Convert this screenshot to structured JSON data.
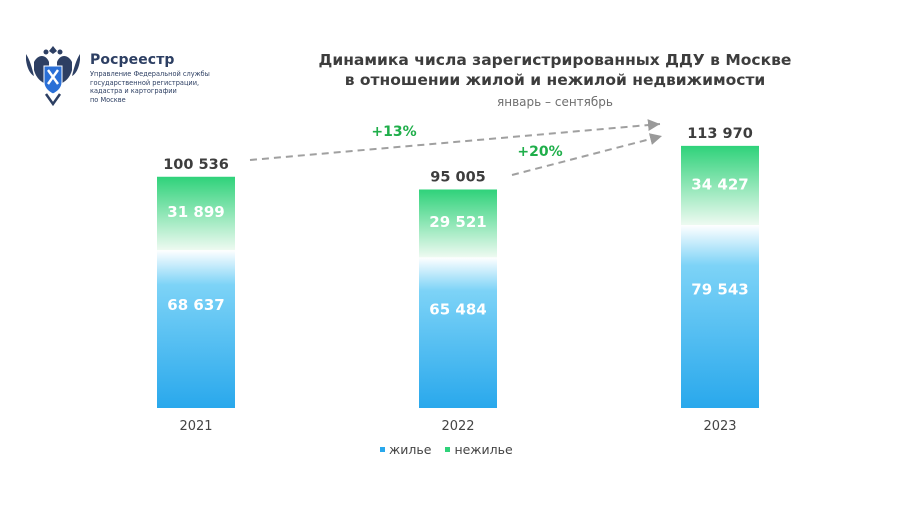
{
  "logo": {
    "name": "Росреестр",
    "subtitle_lines": [
      "Управление Федеральной службы",
      "государственной регистрации,",
      "кадастра и картографии",
      "по Москве"
    ]
  },
  "chart_data": {
    "type": "bar",
    "stacked": true,
    "title_lines": [
      "Динамика числа зарегистрированных ДДУ в Москве",
      "в отношении жилой и нежилой недвижимости"
    ],
    "subtitle": "январь – сентябрь",
    "categories": [
      "2021",
      "2022",
      "2023"
    ],
    "totals": [
      100536,
      95005,
      113970
    ],
    "total_labels": [
      "100 536",
      "95 005",
      "113 970"
    ],
    "series": [
      {
        "name": "жилье",
        "values": [
          68637,
          65484,
          79543
        ],
        "labels": [
          "68 637",
          "65 484",
          "79 543"
        ],
        "color": "#29a8ec"
      },
      {
        "name": "нежилье",
        "values": [
          31899,
          29521,
          34427
        ],
        "labels": [
          "31 899",
          "29 521",
          "34 427"
        ],
        "color": "#2fd27a"
      }
    ],
    "annotations": [
      {
        "text": "+13%",
        "from": "2021",
        "to": "2023",
        "color": "#1fae4a"
      },
      {
        "text": "+20%",
        "from": "2022",
        "to": "2023",
        "color": "#1fae4a"
      }
    ],
    "ylim": [
      0,
      120000
    ],
    "grid": false,
    "legend_position": "bottom"
  }
}
